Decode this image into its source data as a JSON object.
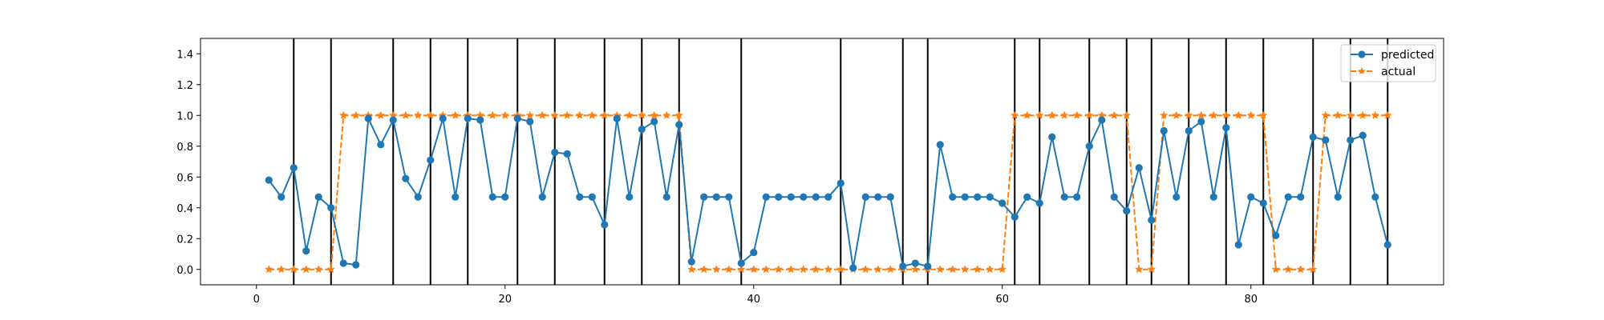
{
  "chart_data": {
    "type": "line",
    "xlim": [
      -4.5,
      95.5
    ],
    "ylim": [
      -0.1,
      1.5
    ],
    "xticks": [
      0,
      20,
      40,
      60,
      80
    ],
    "yticks": [
      0.0,
      0.2,
      0.4,
      0.6,
      0.8,
      1.0,
      1.2,
      1.4
    ],
    "ytick_labels": [
      "0.0",
      "0.2",
      "0.4",
      "0.6",
      "0.8",
      "1.0",
      "1.2",
      "1.4"
    ],
    "legend_position": "top-right",
    "vlines": [
      3,
      6,
      11,
      14,
      17,
      21,
      24,
      28,
      31,
      34,
      39,
      47,
      52,
      54,
      61,
      63,
      67,
      70,
      72,
      75,
      78,
      81,
      85,
      88,
      91
    ],
    "series": [
      {
        "name": "predicted",
        "color": "#1f77b4",
        "marker": "circle",
        "linestyle": "solid",
        "x": [
          1,
          2,
          3,
          4,
          5,
          6,
          7,
          8,
          9,
          10,
          11,
          12,
          13,
          14,
          15,
          16,
          17,
          18,
          19,
          20,
          21,
          22,
          23,
          24,
          25,
          26,
          27,
          28,
          29,
          30,
          31,
          32,
          33,
          34,
          35,
          36,
          37,
          38,
          39,
          40,
          41,
          42,
          43,
          44,
          45,
          46,
          47,
          48,
          49,
          50,
          51,
          52,
          53,
          54,
          55,
          56,
          57,
          58,
          59,
          60,
          61,
          62,
          63,
          64,
          65,
          66,
          67,
          68,
          69,
          70,
          71,
          72,
          73,
          74,
          75,
          76,
          77,
          78,
          79,
          80,
          81,
          82,
          83,
          84,
          85,
          86,
          87,
          88,
          89,
          90,
          91
        ],
        "values": [
          0.58,
          0.47,
          0.66,
          0.12,
          0.47,
          0.4,
          0.04,
          0.03,
          0.98,
          0.81,
          0.97,
          0.59,
          0.47,
          0.71,
          0.98,
          0.47,
          0.98,
          0.97,
          0.47,
          0.47,
          0.98,
          0.96,
          0.47,
          0.76,
          0.75,
          0.47,
          0.47,
          0.29,
          0.98,
          0.47,
          0.91,
          0.96,
          0.47,
          0.94,
          0.05,
          0.47,
          0.47,
          0.47,
          0.04,
          0.11,
          0.47,
          0.47,
          0.47,
          0.47,
          0.47,
          0.47,
          0.56,
          0.01,
          0.47,
          0.47,
          0.47,
          0.02,
          0.04,
          0.02,
          0.81,
          0.47,
          0.47,
          0.47,
          0.47,
          0.43,
          0.34,
          0.47,
          0.43,
          0.86,
          0.47,
          0.47,
          0.8,
          0.97,
          0.47,
          0.38,
          0.66,
          0.32,
          0.9,
          0.47,
          0.9,
          0.96,
          0.47,
          0.92,
          0.16,
          0.47,
          0.43,
          0.22,
          0.47,
          0.47,
          0.86,
          0.84,
          0.47,
          0.84,
          0.87,
          0.47,
          0.16
        ]
      },
      {
        "name": "actual",
        "color": "#ff7f0e",
        "marker": "star",
        "linestyle": "dashed",
        "x": [
          1,
          2,
          3,
          4,
          5,
          6,
          7,
          8,
          9,
          10,
          11,
          12,
          13,
          14,
          15,
          16,
          17,
          18,
          19,
          20,
          21,
          22,
          23,
          24,
          25,
          26,
          27,
          28,
          29,
          30,
          31,
          32,
          33,
          34,
          35,
          36,
          37,
          38,
          39,
          40,
          41,
          42,
          43,
          44,
          45,
          46,
          47,
          48,
          49,
          50,
          51,
          52,
          53,
          54,
          55,
          56,
          57,
          58,
          59,
          60,
          61,
          62,
          63,
          64,
          65,
          66,
          67,
          68,
          69,
          70,
          71,
          72,
          73,
          74,
          75,
          76,
          77,
          78,
          79,
          80,
          81,
          82,
          83,
          84,
          85,
          86,
          87,
          88,
          89,
          90,
          91
        ],
        "values": [
          0,
          0,
          0,
          0,
          0,
          0,
          1,
          1,
          1,
          1,
          1,
          1,
          1,
          1,
          1,
          1,
          1,
          1,
          1,
          1,
          1,
          1,
          1,
          1,
          1,
          1,
          1,
          1,
          1,
          1,
          1,
          1,
          1,
          1,
          0,
          0,
          0,
          0,
          0,
          0,
          0,
          0,
          0,
          0,
          0,
          0,
          0,
          0,
          0,
          0,
          0,
          0,
          0,
          0,
          0,
          0,
          0,
          0,
          0,
          0,
          1,
          1,
          1,
          1,
          1,
          1,
          1,
          1,
          1,
          1,
          0,
          0,
          1,
          1,
          1,
          1,
          1,
          1,
          1,
          1,
          1,
          0,
          0,
          0,
          0,
          1,
          1,
          1,
          1,
          1,
          1
        ]
      }
    ]
  }
}
